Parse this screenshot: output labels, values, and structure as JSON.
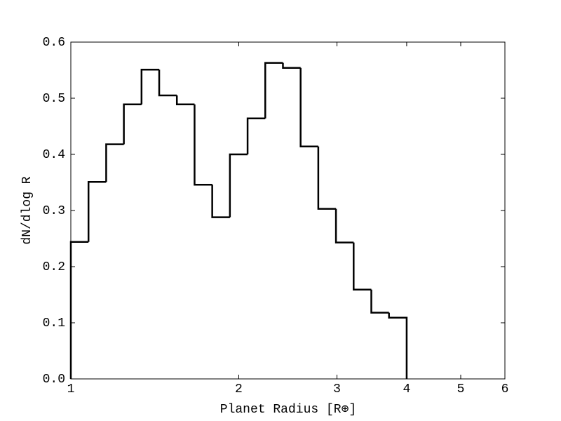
{
  "chart_data": {
    "type": "histogram",
    "xlabel": "Planet Radius [R⊕]",
    "ylabel": "dN/dlog R",
    "bins": [
      1,
      1.0757,
      1.1571,
      1.2447,
      1.3389,
      1.4402,
      1.5492,
      1.6665,
      1.7926,
      1.9283,
      2.0743,
      2.2313,
      2.4002,
      2.5819,
      2.7773,
      2.9875,
      3.2136,
      3.4569,
      3.7185,
      4.0
    ],
    "values": [
      0.244,
      0.351,
      0.418,
      0.489,
      0.551,
      0.505,
      0.489,
      0.346,
      0.288,
      0.4,
      0.464,
      0.563,
      0.554,
      0.414,
      0.303,
      0.243,
      0.159,
      0.118,
      0.109
    ],
    "color": "#000000",
    "xscale": "log",
    "xlim": [
      1,
      6
    ],
    "xticks": [
      1,
      2,
      3,
      4,
      5,
      6
    ],
    "ylim": [
      0,
      0.6
    ],
    "yticks": [
      {
        "value": 0,
        "label": "0.0"
      },
      0.1,
      0.2,
      0.3,
      0.4,
      0.5,
      0.6
    ]
  }
}
